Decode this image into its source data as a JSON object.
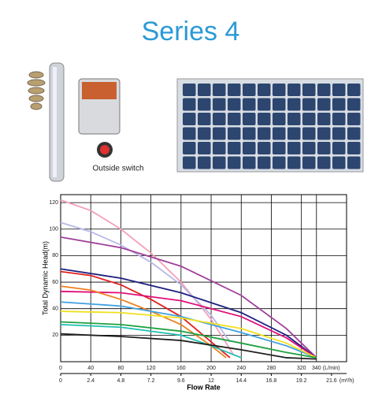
{
  "header": {
    "title": "Series 4",
    "caption": "Outside switch"
  },
  "chart_data": {
    "type": "line",
    "y_label": "Total Dynamic Head(m)",
    "x_label": "Flow Rate",
    "x_unit": "(L/min)",
    "x2_unit": "(m³/h)",
    "xlim": [
      0,
      380
    ],
    "xticks": [
      0,
      40,
      80,
      120,
      160,
      200,
      240,
      280,
      320,
      340
    ],
    "x2lim": [
      0,
      22.8
    ],
    "x2ticks": [
      0,
      2.4,
      4.8,
      7.2,
      9.6,
      12,
      14.4,
      16.8,
      19.2,
      21.6
    ],
    "ylim": [
      0,
      126
    ],
    "yticks": [
      20,
      40,
      60,
      80,
      100,
      120
    ],
    "grid": true,
    "series": [
      {
        "color": "#f4a0b8",
        "x": [
          0,
          40,
          80,
          120,
          160,
          200,
          230
        ],
        "values": [
          122,
          114,
          100,
          82,
          60,
          32,
          5
        ]
      },
      {
        "color": "#b8b8e8",
        "x": [
          0,
          40,
          80,
          120,
          160,
          200,
          225
        ],
        "values": [
          105,
          98,
          88,
          75,
          58,
          35,
          15
        ]
      },
      {
        "color": "#a0409a",
        "x": [
          0,
          80,
          160,
          240,
          300,
          340
        ],
        "values": [
          94,
          86,
          72,
          50,
          25,
          3
        ]
      },
      {
        "color": "#1e1e80",
        "x": [
          0,
          80,
          160,
          240,
          300,
          340
        ],
        "values": [
          70,
          63,
          52,
          37,
          20,
          3
        ]
      },
      {
        "color": "#e02020",
        "x": [
          0,
          40,
          80,
          120,
          160,
          200,
          225
        ],
        "values": [
          68,
          65,
          58,
          47,
          34,
          15,
          3
        ]
      },
      {
        "color": "#e0107a",
        "x": [
          0,
          80,
          160,
          240,
          300,
          340
        ],
        "values": [
          53,
          52,
          46,
          34,
          18,
          3
        ]
      },
      {
        "color": "#f08020",
        "x": [
          0,
          40,
          80,
          120,
          160,
          200,
          220
        ],
        "values": [
          57,
          54,
          47,
          38,
          28,
          12,
          3
        ]
      },
      {
        "color": "#40a0e0",
        "x": [
          0,
          80,
          160,
          240,
          300,
          340
        ],
        "values": [
          45,
          42,
          34,
          22,
          12,
          3
        ]
      },
      {
        "color": "#f0e020",
        "x": [
          0,
          80,
          160,
          240,
          300,
          340
        ],
        "values": [
          38,
          37,
          33,
          25,
          14,
          3
        ]
      },
      {
        "color": "#20a040",
        "x": [
          0,
          80,
          160,
          240,
          300,
          340
        ],
        "values": [
          30,
          28,
          23,
          14,
          7,
          3
        ]
      },
      {
        "color": "#20c0b0",
        "x": [
          0,
          80,
          160,
          200,
          240
        ],
        "values": [
          28,
          26,
          20,
          12,
          3
        ]
      },
      {
        "color": "#202020",
        "x": [
          0,
          80,
          160,
          240,
          300,
          340
        ],
        "values": [
          21,
          19,
          16,
          9,
          3,
          2
        ]
      }
    ]
  }
}
